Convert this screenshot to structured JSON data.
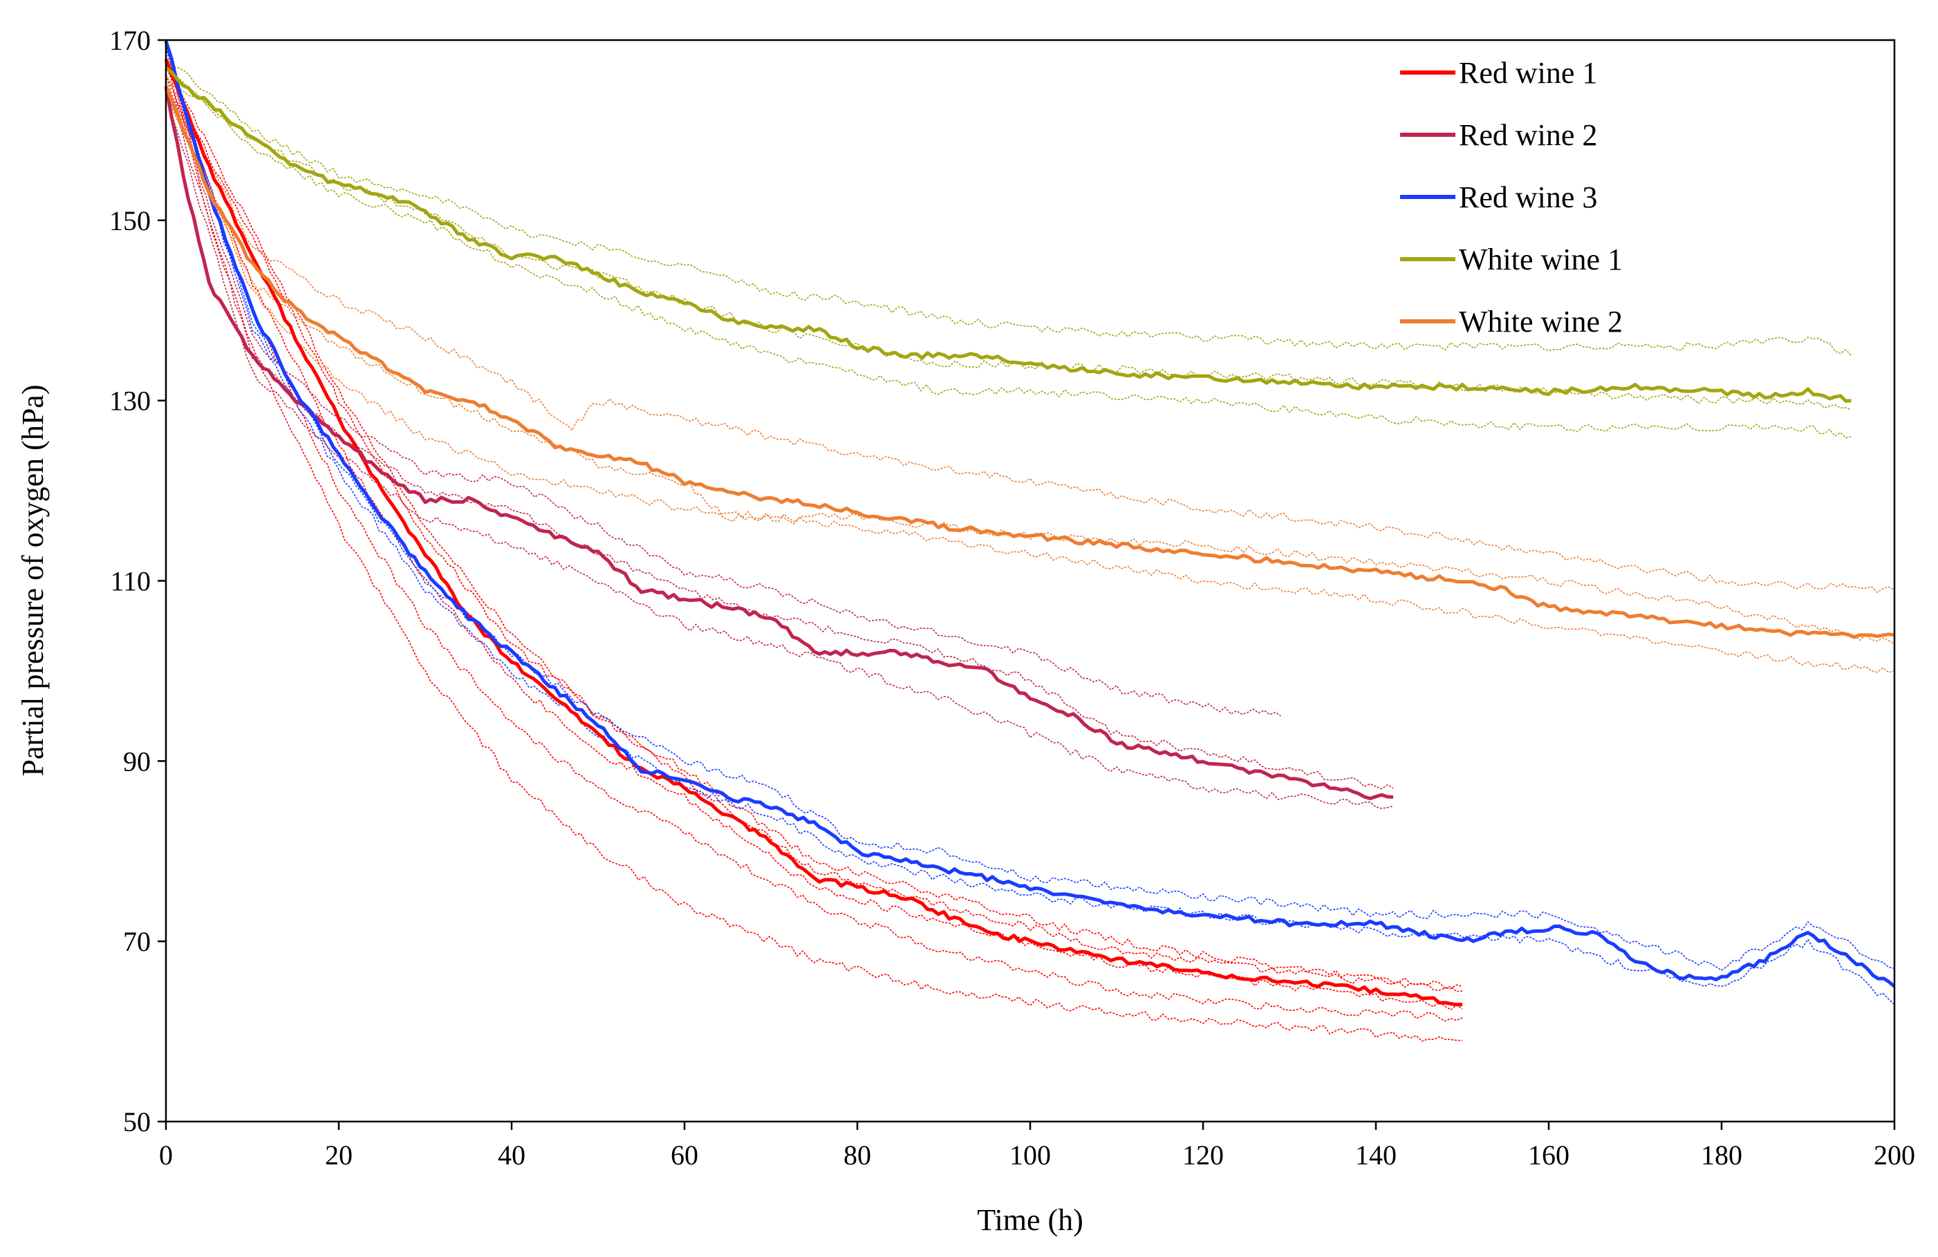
{
  "chart_data": {
    "type": "line",
    "title": "",
    "xlabel": "Time (h)",
    "ylabel": "Partial pressure of oxygen (hPa)",
    "xlim": [
      0,
      200
    ],
    "ylim": [
      50,
      170
    ],
    "xticks": [
      0,
      20,
      40,
      60,
      80,
      100,
      120,
      140,
      160,
      180,
      200
    ],
    "yticks": [
      50,
      70,
      90,
      110,
      130,
      150,
      170
    ],
    "xtick_labels": [
      "0",
      "20",
      "40",
      "60",
      "80",
      "100",
      "120",
      "140",
      "160",
      "180",
      "200"
    ],
    "ytick_labels": [
      "50",
      "70",
      "90",
      "110",
      "130",
      "150",
      "170"
    ],
    "grid": false,
    "legend_position": "top-right",
    "series": [
      {
        "name": "Red wine 1",
        "color": "#ff0000",
        "x": [
          0,
          2,
          5,
          10,
          15,
          20,
          25,
          30,
          35,
          40,
          45,
          50,
          55,
          60,
          65,
          70,
          75,
          80,
          85,
          90,
          95,
          100,
          110,
          120,
          130,
          140,
          150
        ],
        "y": [
          168,
          163,
          156,
          146,
          137,
          128,
          120,
          113,
          106,
          101,
          97,
          93,
          89,
          87,
          84,
          81,
          77,
          76,
          75,
          73,
          71,
          70,
          68,
          66.5,
          65.5,
          64.5,
          63
        ],
        "replicates": [
          {
            "x": [
              0,
              5,
              10,
              20,
              30,
              40,
              50,
              60,
              75,
              90,
              110,
              130,
              150
            ],
            "y": [
              167,
              157,
              148,
              130,
              115,
              103,
              95,
              88,
              78,
              74,
              69,
              66.5,
              64.5
            ]
          },
          {
            "x": [
              0,
              5,
              10,
              20,
              30,
              40,
              50,
              60,
              75,
              90,
              110,
              130,
              150
            ],
            "y": [
              168,
              158,
              149,
              131,
              116,
              104,
              95,
              89,
              79,
              75,
              70,
              67,
              65
            ]
          },
          {
            "x": [
              0,
              5,
              10,
              20,
              30,
              40,
              50,
              60,
              75,
              90,
              110,
              130,
              150
            ],
            "y": [
              166,
              154,
              143,
              125,
              110,
              99,
              91,
              86,
              76,
              72,
              67.5,
              65,
              62.5
            ]
          },
          {
            "x": [
              0,
              5,
              10,
              20,
              30,
              40,
              50,
              60,
              75,
              90,
              110,
              130,
              150
            ],
            "y": [
              167,
              153,
              140,
              120,
              105,
              94,
              87,
              82,
              74,
              69,
              64.5,
              62.5,
              61.5
            ]
          },
          {
            "x": [
              0,
              5,
              10,
              20,
              30,
              40,
              50,
              60,
              75,
              90,
              110,
              130,
              150
            ],
            "y": [
              169,
              150,
              136,
              116,
              100,
              88,
              80,
              74,
              68,
              64.5,
              62,
              60.5,
              59
            ]
          }
        ]
      },
      {
        "name": "Red wine 2",
        "color": "#c0254f",
        "x": [
          0,
          2,
          5,
          10,
          15,
          20,
          25,
          30,
          35,
          40,
          45,
          50,
          55,
          60,
          65,
          70,
          75,
          80,
          85,
          90,
          95,
          100,
          105,
          110,
          115,
          120,
          130,
          140,
          142
        ],
        "y": [
          165,
          155,
          143,
          135,
          130,
          126,
          122,
          119,
          119,
          117,
          115,
          113,
          109,
          108,
          107,
          106,
          102,
          102,
          102,
          101,
          100,
          97,
          95,
          92,
          91,
          90,
          88,
          86,
          86
        ],
        "replicates": [
          {
            "x": [
              0,
              10,
              20,
              30,
              40,
              50,
              60,
              70,
              80,
              90,
              100,
              110,
              120,
              129
            ],
            "y": [
              166,
              137,
              128,
              122,
              121,
              116,
              111,
              109,
              106,
              104,
              102,
              98,
              96,
              95
            ]
          },
          {
            "x": [
              0,
              10,
              20,
              30,
              40,
              50,
              60,
              70,
              80,
              90,
              100,
              110,
              120,
              130,
              142
            ],
            "y": [
              164,
              133,
              124,
              117,
              114,
              110,
              105,
              103,
              100,
              97,
              93,
              89,
              87,
              86,
              85
            ]
          },
          {
            "x": [
              0,
              10,
              20,
              30,
              40,
              50,
              60,
              70,
              80,
              90,
              100,
              110,
              120,
              130,
              142
            ],
            "y": [
              165,
              135,
              126,
              120,
              118,
              113,
              109,
              106,
              104,
              102,
              99,
              93,
              91,
              89,
              87
            ]
          }
        ]
      },
      {
        "name": "Red wine 3",
        "color": "#1a3cff",
        "x": [
          0,
          2,
          5,
          10,
          15,
          20,
          25,
          30,
          35,
          40,
          45,
          50,
          55,
          60,
          65,
          70,
          75,
          80,
          85,
          90,
          95,
          100,
          110,
          120,
          130,
          140,
          145,
          150,
          155,
          160,
          165,
          170,
          175,
          180,
          185,
          190,
          195,
          200
        ],
        "y": [
          170,
          163,
          153,
          140,
          131,
          124,
          117,
          111,
          106,
          102,
          98,
          94,
          89,
          88,
          86,
          85,
          83,
          80,
          79,
          78,
          77,
          76,
          74,
          73,
          72,
          72,
          71,
          70,
          71,
          71.5,
          71,
          68,
          66,
          66,
          68,
          71,
          68,
          65
        ],
        "replicates": [
          {
            "x": [
              0,
              10,
              20,
              30,
              40,
              50,
              60,
              70,
              80,
              90,
              100,
              120,
              140,
              160,
              170,
              180,
              190,
              200
            ],
            "y": [
              169,
              139,
              123,
              110,
              102,
              95,
              90,
              87,
              81,
              80,
              77,
              75,
              73,
              73,
              70,
              67,
              72,
              67
            ]
          },
          {
            "x": [
              0,
              10,
              20,
              30,
              40,
              50,
              60,
              70,
              80,
              90,
              100,
              120,
              140,
              160,
              170,
              180,
              190,
              200
            ],
            "y": [
              168,
              138,
              122,
              109,
              100,
              93,
              87,
              84,
              79,
              77,
              75,
              73,
              71,
              70,
              67,
              65,
              70,
              63
            ]
          }
        ]
      },
      {
        "name": "White wine 1",
        "color": "#a3a512",
        "x": [
          0,
          2,
          5,
          10,
          15,
          20,
          25,
          30,
          35,
          40,
          45,
          50,
          55,
          60,
          65,
          70,
          75,
          80,
          85,
          90,
          95,
          100,
          110,
          120,
          130,
          140,
          150,
          160,
          170,
          180,
          185,
          190,
          195
        ],
        "y": [
          167,
          165,
          163,
          159,
          156,
          154,
          153,
          151,
          148,
          146,
          146,
          144,
          142,
          141,
          139,
          138,
          138,
          136,
          135,
          135,
          135,
          134,
          133,
          132.5,
          132,
          131.5,
          131.5,
          131,
          131.5,
          131,
          130.5,
          131,
          130
        ],
        "replicates": [
          {
            "x": [
              0,
              10,
              20,
              30,
              40,
              50,
              60,
              70,
              80,
              90,
              100,
              120,
              140,
              160,
              180,
              190,
              195
            ],
            "y": [
              168,
              160,
              155,
              153,
              149,
              147,
              145,
              142,
              141,
              139,
              138,
              137,
              136,
              136,
              136,
              137,
              135
            ]
          },
          {
            "x": [
              0,
              10,
              20,
              30,
              40,
              50,
              60,
              70,
              80,
              90,
              100,
              120,
              140,
              160,
              180,
              190,
              195
            ],
            "y": [
              166,
              159,
              154,
              151,
              146,
              144,
              141,
              138,
              136,
              134,
              134,
              133,
              132,
              131,
              130,
              130,
              129
            ]
          },
          {
            "x": [
              0,
              10,
              20,
              30,
              40,
              50,
              60,
              70,
              80,
              90,
              100,
              120,
              140,
              160,
              180,
              190,
              195
            ],
            "y": [
              167,
              158,
              153,
              150,
              145,
              142,
              138,
              135,
              133,
              131,
              131,
              130,
              128,
              127,
              127,
              127,
              126
            ]
          }
        ]
      },
      {
        "name": "White wine 2",
        "color": "#ee7d30",
        "x": [
          0,
          2,
          5,
          10,
          15,
          20,
          25,
          30,
          35,
          40,
          45,
          50,
          55,
          60,
          65,
          70,
          75,
          80,
          85,
          90,
          95,
          100,
          110,
          120,
          130,
          140,
          150,
          155,
          160,
          170,
          180,
          190,
          200
        ],
        "y": [
          165,
          160,
          153,
          145,
          140,
          137,
          134,
          131,
          130,
          128,
          125,
          124,
          123,
          121,
          120,
          119,
          118.5,
          117.5,
          117,
          116,
          115.5,
          115,
          114,
          113,
          112,
          111,
          110,
          109,
          107,
          106,
          105,
          104,
          104
        ],
        "replicates": [
          {
            "x": [
              0,
              10,
              20,
              30,
              40,
              47,
              50,
              60,
              80,
              100,
              120,
              140,
              160,
              180,
              200
            ],
            "y": [
              166,
              147,
              141,
              137,
              132,
              127,
              130,
              128,
              124,
              121,
              118,
              116,
              113,
              110,
              109
            ]
          },
          {
            "x": [
              0,
              10,
              20,
              30,
              40,
              50,
              60,
              65,
              80,
              100,
              120,
              140,
              160,
              180,
              200
            ],
            "y": [
              164,
              143,
              136,
              131,
              127,
              123,
              121,
              117,
              117,
              115,
              114,
              112,
              110,
              107,
              103
            ]
          },
          {
            "x": [
              0,
              10,
              20,
              30,
              40,
              50,
              60,
              80,
              100,
              120,
              140,
              160,
              180,
              200
            ],
            "y": [
              165,
              142,
              132,
              126,
              122,
              120,
              118,
              116,
              113,
              110,
              108,
              105,
              102,
              100
            ]
          }
        ]
      }
    ]
  }
}
